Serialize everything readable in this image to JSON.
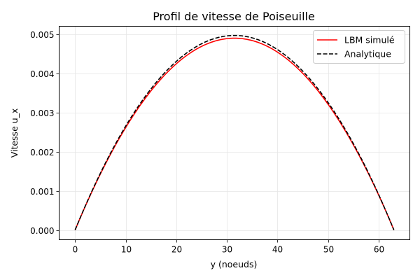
{
  "chart_data": {
    "type": "line",
    "title": "Profil de vitesse de Poiseuille",
    "xlabel": "y (noeuds)",
    "ylabel": "Vitesse u_x",
    "xlim": [
      -3.15,
      66.15
    ],
    "ylim": [
      -0.000248,
      0.005205
    ],
    "xticks": [
      0,
      10,
      20,
      30,
      40,
      50,
      60
    ],
    "xtick_labels": [
      "0",
      "10",
      "20",
      "30",
      "40",
      "50",
      "60"
    ],
    "yticks": [
      0.0,
      0.001,
      0.002,
      0.003,
      0.004,
      0.005
    ],
    "ytick_labels": [
      "0.000",
      "0.001",
      "0.002",
      "0.003",
      "0.004",
      "0.005"
    ],
    "grid": true,
    "legend_position": "upper right",
    "x": [
      0,
      3,
      6,
      9,
      12,
      15,
      18,
      21,
      24,
      27,
      30,
      31.5,
      33,
      36,
      39,
      42,
      45,
      48,
      51,
      54,
      57,
      60,
      63
    ],
    "series": [
      {
        "name": "LBM simulé",
        "color": "#ff0000",
        "style": "solid",
        "values": [
          0.0,
          0.000889,
          0.001689,
          0.0024,
          0.003022,
          0.003556,
          0.004,
          0.004356,
          0.004622,
          0.0048,
          0.004889,
          0.0049,
          0.004889,
          0.0048,
          0.004622,
          0.004356,
          0.004,
          0.003556,
          0.003022,
          0.0024,
          0.001689,
          0.000889,
          0.0
        ]
      },
      {
        "name": "Analytique",
        "color": "#000000",
        "style": "dashed",
        "values": [
          0.0,
          0.000902,
          0.001713,
          0.002434,
          0.003066,
          0.003607,
          0.004058,
          0.004418,
          0.004689,
          0.004869,
          0.004959,
          0.00497,
          0.004959,
          0.004869,
          0.004689,
          0.004418,
          0.004058,
          0.003607,
          0.003066,
          0.002434,
          0.001713,
          0.000902,
          0.0
        ]
      }
    ]
  }
}
